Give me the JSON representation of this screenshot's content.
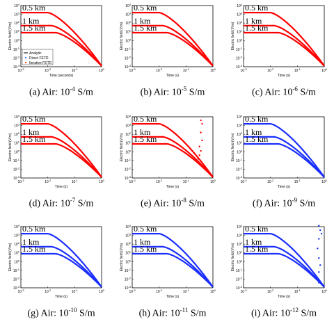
{
  "chart_data": [
    {
      "id": "a",
      "type": "line",
      "caption": "(a) Air: ",
      "exponent": "-4",
      "unit": " S/m",
      "xlabel": "Time (seconds)",
      "ylabel": "Electric field (V/m)",
      "color": "#ff0000",
      "markers": [],
      "legend": true
    },
    {
      "id": "b",
      "type": "line",
      "caption": "(b) Air: ",
      "exponent": "-5",
      "unit": " S/m",
      "xlabel": "Time (s)",
      "ylabel": "Electric field (V/m)",
      "color": "#ff0000",
      "markers": []
    },
    {
      "id": "c",
      "type": "line",
      "caption": "(c) Air: ",
      "exponent": "-6",
      "unit": " S/m",
      "xlabel": "Time (s)",
      "ylabel": "Electric field (V/m)",
      "color": "#ff0000",
      "markers": []
    },
    {
      "id": "d",
      "type": "line",
      "caption": "(d) Air: ",
      "exponent": "-7",
      "unit": " S/m",
      "xlabel": "Time (s)",
      "ylabel": "Electric field (V/m)",
      "color": "#ff0000",
      "markers": []
    },
    {
      "id": "e",
      "type": "line",
      "caption": "(e) Air: ",
      "exponent": "-8",
      "unit": " S/m",
      "xlabel": "Time (s)",
      "ylabel": "Electric field (V/m)",
      "color": "#ff0000",
      "markers": [
        [
          0.55,
          3.6
        ],
        [
          0.6,
          3.2
        ],
        [
          0.55,
          2.2
        ],
        [
          0.6,
          1.3
        ],
        [
          0.5,
          0.6
        ],
        [
          0.55,
          0.1
        ],
        [
          0.5,
          -0.4
        ],
        [
          0.45,
          -0.8
        ],
        [
          0.4,
          -1.1
        ],
        [
          0.45,
          -1.3
        ]
      ],
      "marker_color": "#ff0000"
    },
    {
      "id": "f",
      "type": "line",
      "caption": "(f) Air: ",
      "exponent": "-9",
      "unit": " S/m",
      "xlabel": "Time (s)",
      "ylabel": "Electric field (V/m)",
      "color": "#1a2eff",
      "markers": []
    },
    {
      "id": "g",
      "type": "line",
      "caption": "(g) Air: ",
      "exponent": "-10",
      "unit": " S/m",
      "xlabel": "Time (s)",
      "ylabel": "Electric field (V/m)",
      "color": "#1a2eff",
      "markers": []
    },
    {
      "id": "h",
      "type": "line",
      "caption": "(h) Air: ",
      "exponent": "-11",
      "unit": " S/m",
      "xlabel": "Time (s)",
      "ylabel": "Electric field (V/m)",
      "color": "#1a2eff",
      "markers": []
    },
    {
      "id": "i",
      "type": "line",
      "caption": "(i) Air: ",
      "exponent": "-12",
      "unit": " S/m",
      "xlabel": "Time (s)",
      "ylabel": "Electric field (V/m)",
      "color": "#1a2eff",
      "markers": [
        [
          0.8,
          4.1
        ],
        [
          0.85,
          3.6
        ],
        [
          0.9,
          3.2
        ],
        [
          0.8,
          2.6
        ],
        [
          0.75,
          1.5
        ],
        [
          0.8,
          0.4
        ],
        [
          0.85,
          -0.4
        ],
        [
          0.8,
          -1.2
        ],
        [
          0.75,
          -1.9
        ],
        [
          0.8,
          -2.4
        ]
      ],
      "marker_color": "#1a2eff"
    }
  ],
  "shared": {
    "x_scale": "log",
    "y_scale": "log",
    "xlim_exp": [
      -3,
      0
    ],
    "ylim_exp": [
      -3,
      4
    ],
    "x_ticks": [
      "10^-3",
      "10^-2",
      "10^-1",
      "10^0"
    ],
    "y_ticks": [
      "10^-3",
      "10^-2",
      "10^-1",
      "10^0",
      "10^1",
      "10^2",
      "10^3",
      "10^4"
    ],
    "series": [
      {
        "name": "0.5 km",
        "label": "0.5 km",
        "plateau_exp": 3.2
      },
      {
        "name": "1 km",
        "label": "1 km",
        "plateau_exp": 1.7
      },
      {
        "name": "1.5 km",
        "label": "1.5 km",
        "plateau_exp": 0.9
      }
    ],
    "legend": {
      "position": "lower-left",
      "entries": [
        "Analytic",
        "Direct FETD",
        "Iterative FETD"
      ],
      "colors": [
        "#000000",
        "#1a2eff",
        "#ff0000"
      ]
    }
  }
}
